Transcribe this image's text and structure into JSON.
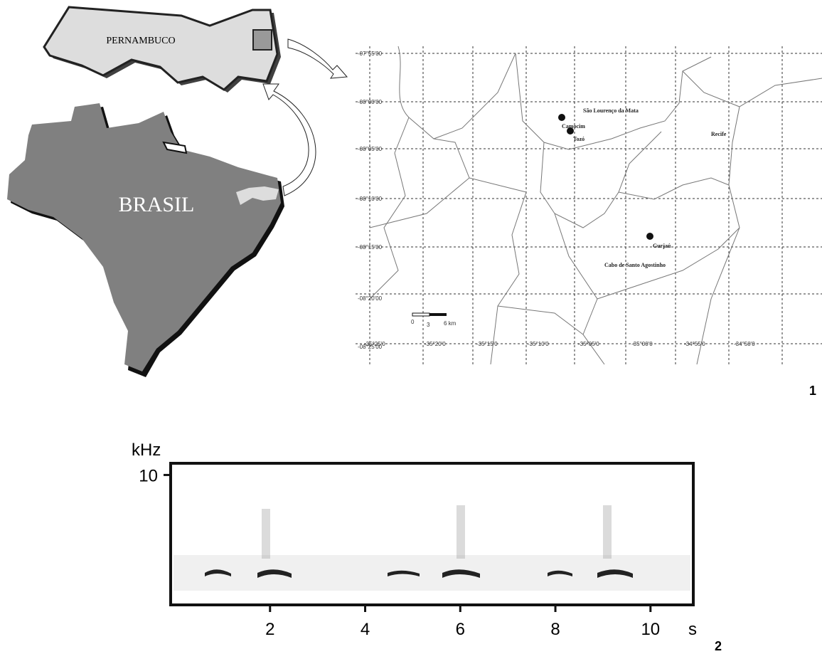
{
  "map": {
    "state_label": "PERNAMBUCO",
    "country_label": "BRASIL",
    "lat_labels": [
      "-07°55'00",
      "-08°00'00",
      "-08°05'00",
      "-08°10'00",
      "-08°15'00",
      "-08°20'00",
      "-08°25'00"
    ],
    "lon_labels": [
      "-35°25'0",
      "-35°20'0",
      "-35°15'0",
      "-35°10'0",
      "-35°05'0",
      "-35°00'0",
      "-34°55'0",
      "-34°50'0"
    ],
    "places": [
      "São Lourenço da Mata",
      "Camocim",
      "Tozó",
      "Recife",
      "Gurjaú",
      "Cabo de Santo Agostinho"
    ],
    "scale_labels": [
      "0",
      "3",
      "6 km"
    ],
    "panel": "1"
  },
  "spectrogram": {
    "y_label": "kHz",
    "x_label": "s",
    "xlim": [
      0,
      10.9
    ],
    "ylim": [
      0,
      10.9
    ],
    "xticks": [
      2,
      4,
      6,
      8,
      10
    ],
    "yticks": [
      10
    ],
    "panel": "2"
  }
}
